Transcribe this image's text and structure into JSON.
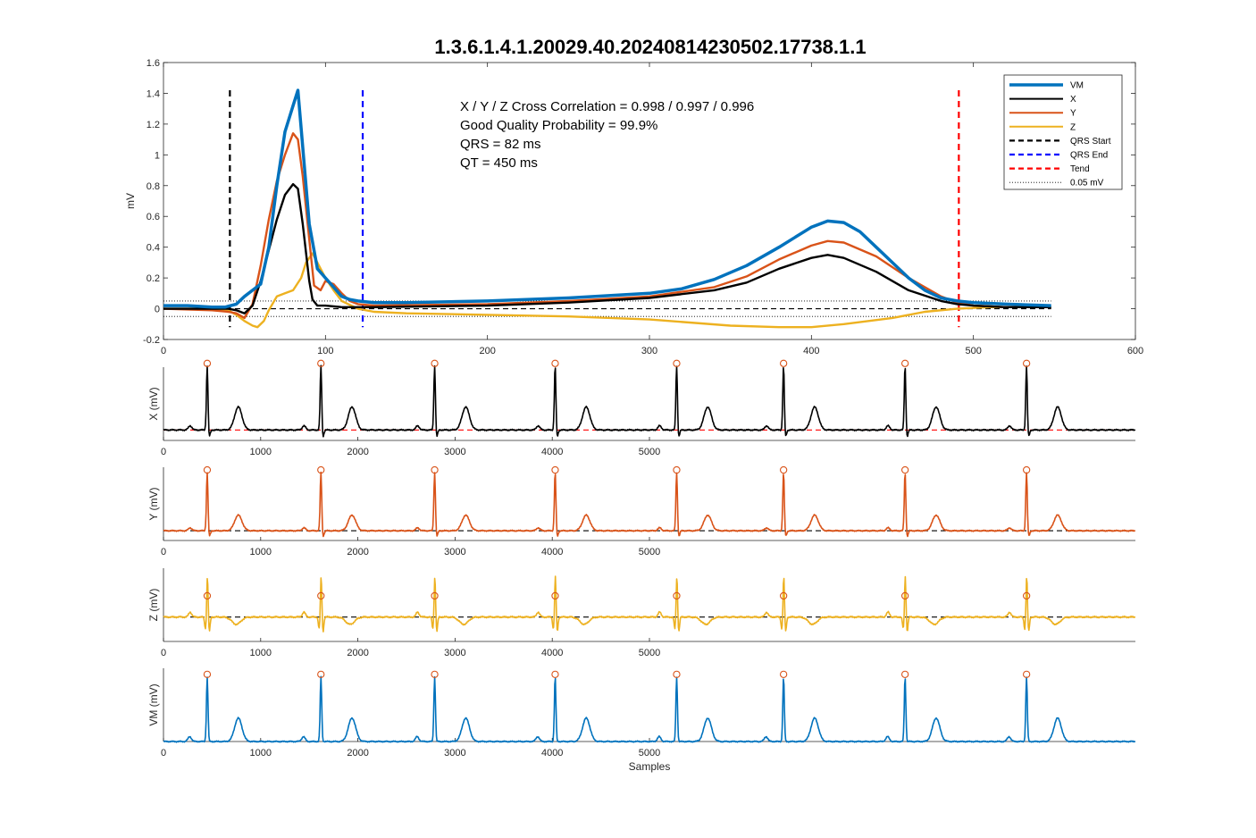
{
  "title": "1.3.6.1.4.1.20029.40.20240814230502.17738.1.1",
  "colors": {
    "vm": "#0072BD",
    "x": "#000000",
    "y": "#D95319",
    "z": "#EDB120",
    "qrs_start": "#000000",
    "qrs_end": "#0000FF",
    "tend": "#FF0000",
    "peak_marker": "#D95319",
    "axis": "#262626"
  },
  "annotations": [
    "X / Y / Z Cross Correlation = 0.998 / 0.997 / 0.996",
    "Good Quality Probability = 99.9%",
    "QRS = 82 ms",
    "QT = 450 ms"
  ],
  "chart_data": [
    {
      "type": "line",
      "ylabel": "mV",
      "xlabel": "",
      "xlim": [
        0,
        600
      ],
      "ylim": [
        -0.2,
        1.6
      ],
      "xticks": [
        0,
        100,
        200,
        300,
        400,
        500,
        600
      ],
      "yticks": [
        -0.2,
        0,
        0.2,
        0.4,
        0.6,
        0.8,
        1,
        1.2,
        1.4,
        1.6
      ],
      "ytick_labels": [
        "-0.2",
        "0",
        "0.2",
        "0.4",
        "0.6",
        "0.8",
        "1",
        "1.2",
        "1.4",
        "1.6"
      ],
      "legend": {
        "position": "top-right",
        "entries": [
          {
            "name": "VM",
            "style": "vm"
          },
          {
            "name": "X",
            "style": "x"
          },
          {
            "name": "Y",
            "style": "y"
          },
          {
            "name": "Z",
            "style": "z"
          },
          {
            "name": "QRS Start",
            "style": "qrs_start"
          },
          {
            "name": "QRS End",
            "style": "qrs_end"
          },
          {
            "name": "Tend",
            "style": "tend"
          },
          {
            "name": "0.05 mV",
            "style": "threshold"
          }
        ]
      },
      "markers": {
        "qrs_start": 41,
        "qrs_end": 123,
        "tend": 491
      },
      "threshold_mv": 0.05,
      "series": [
        {
          "name": "VM",
          "x": [
            0,
            15,
            30,
            38,
            45,
            50,
            55,
            60,
            65,
            70,
            75,
            80,
            83,
            86,
            90,
            95,
            100,
            105,
            110,
            115,
            120,
            130,
            150,
            200,
            250,
            300,
            320,
            340,
            360,
            380,
            400,
            410,
            420,
            430,
            440,
            450,
            460,
            470,
            480,
            490,
            500,
            520,
            548
          ],
          "y": [
            0.02,
            0.02,
            0.01,
            0.01,
            0.03,
            0.08,
            0.12,
            0.16,
            0.4,
            0.8,
            1.15,
            1.32,
            1.42,
            1.05,
            0.55,
            0.26,
            0.2,
            0.14,
            0.08,
            0.06,
            0.05,
            0.04,
            0.04,
            0.05,
            0.07,
            0.1,
            0.13,
            0.19,
            0.28,
            0.4,
            0.53,
            0.57,
            0.56,
            0.5,
            0.4,
            0.3,
            0.2,
            0.12,
            0.07,
            0.05,
            0.04,
            0.03,
            0.02
          ]
        },
        {
          "name": "X",
          "x": [
            0,
            30,
            40,
            45,
            50,
            55,
            60,
            65,
            70,
            75,
            80,
            83,
            86,
            90,
            92,
            95,
            100,
            110,
            120,
            130,
            200,
            250,
            300,
            340,
            360,
            380,
            400,
            410,
            420,
            440,
            460,
            480,
            490,
            500,
            520,
            548
          ],
          "y": [
            0,
            0,
            0,
            -0.01,
            -0.03,
            0.02,
            0.18,
            0.38,
            0.58,
            0.74,
            0.81,
            0.78,
            0.55,
            0.18,
            0.06,
            0.02,
            0.02,
            0.01,
            0.01,
            0.01,
            0.02,
            0.04,
            0.07,
            0.12,
            0.17,
            0.26,
            0.33,
            0.35,
            0.33,
            0.24,
            0.12,
            0.05,
            0.03,
            0.02,
            0.01,
            0.01
          ]
        },
        {
          "name": "Y",
          "x": [
            0,
            30,
            40,
            45,
            50,
            55,
            60,
            65,
            70,
            75,
            80,
            83,
            86,
            90,
            93,
            97,
            100,
            105,
            110,
            115,
            120,
            130,
            200,
            250,
            300,
            340,
            360,
            380,
            400,
            410,
            420,
            440,
            460,
            480,
            490,
            500,
            520,
            548
          ],
          "y": [
            0,
            -0.01,
            -0.02,
            -0.03,
            -0.06,
            0.03,
            0.28,
            0.58,
            0.83,
            1.0,
            1.14,
            1.1,
            0.86,
            0.45,
            0.15,
            0.12,
            0.18,
            0.16,
            0.1,
            0.05,
            0.03,
            0.02,
            0.03,
            0.05,
            0.08,
            0.14,
            0.21,
            0.32,
            0.41,
            0.44,
            0.43,
            0.34,
            0.2,
            0.08,
            0.04,
            0.02,
            0.01,
            0.01
          ]
        },
        {
          "name": "Z",
          "x": [
            0,
            30,
            40,
            45,
            50,
            55,
            58,
            62,
            65,
            70,
            75,
            80,
            85,
            88,
            92,
            95,
            100,
            105,
            110,
            120,
            130,
            150,
            200,
            250,
            300,
            350,
            380,
            400,
            420,
            450,
            470,
            490,
            510,
            530,
            548
          ],
          "y": [
            0,
            0,
            -0.01,
            -0.04,
            -0.08,
            -0.11,
            -0.12,
            -0.08,
            -0.01,
            0.08,
            0.1,
            0.12,
            0.2,
            0.3,
            0.36,
            0.3,
            0.2,
            0.12,
            0.05,
            0.0,
            -0.02,
            -0.03,
            -0.04,
            -0.05,
            -0.07,
            -0.11,
            -0.12,
            -0.12,
            -0.1,
            -0.06,
            -0.02,
            0.0,
            0.01,
            0.01,
            0.01
          ]
        }
      ]
    },
    {
      "type": "line",
      "ylabel": "X (mV)",
      "xlabel": "",
      "xlim": [
        0,
        6000
      ],
      "xticks": [
        0,
        1000,
        2000,
        3000,
        4000,
        5000
      ],
      "ylim": [
        -0.1,
        0.6
      ],
      "baseline_color": "tend",
      "series": [
        {
          "name": "X",
          "beats": [
            450,
            1620,
            2790,
            4030,
            5280,
            6380,
            7630,
            8880
          ]
        }
      ]
    },
    {
      "type": "line",
      "ylabel": "Y (mV)",
      "xlabel": "",
      "xlim": [
        0,
        6000
      ],
      "xticks": [
        0,
        1000,
        2000,
        3000,
        4000,
        5000
      ],
      "ylim": [
        -0.1,
        0.65
      ],
      "baseline_color": "qrs_start",
      "series": [
        {
          "name": "Y",
          "beats": [
            450,
            1620,
            2790,
            4030,
            5280,
            6380,
            7630,
            8880
          ]
        }
      ]
    },
    {
      "type": "line",
      "ylabel": "Z (mV)",
      "xlabel": "",
      "xlim": [
        0,
        6000
      ],
      "xticks": [
        0,
        1000,
        2000,
        3000,
        4000,
        5000
      ],
      "ylim": [
        -0.2,
        0.4
      ],
      "baseline_color": "qrs_start",
      "series": [
        {
          "name": "Z",
          "beats": [
            450,
            1620,
            2790,
            4030,
            5280,
            6380,
            7630,
            8880
          ]
        }
      ]
    },
    {
      "type": "line",
      "ylabel": "VM (mV)",
      "xlabel": "Samples",
      "xlim": [
        0,
        6000
      ],
      "xticks": [
        0,
        1000,
        2000,
        3000,
        4000,
        5000
      ],
      "ylim": [
        0,
        0.75
      ],
      "series": [
        {
          "name": "VM",
          "beats": [
            450,
            1620,
            2790,
            4030,
            5280,
            6380,
            7630,
            8880
          ]
        }
      ]
    }
  ]
}
